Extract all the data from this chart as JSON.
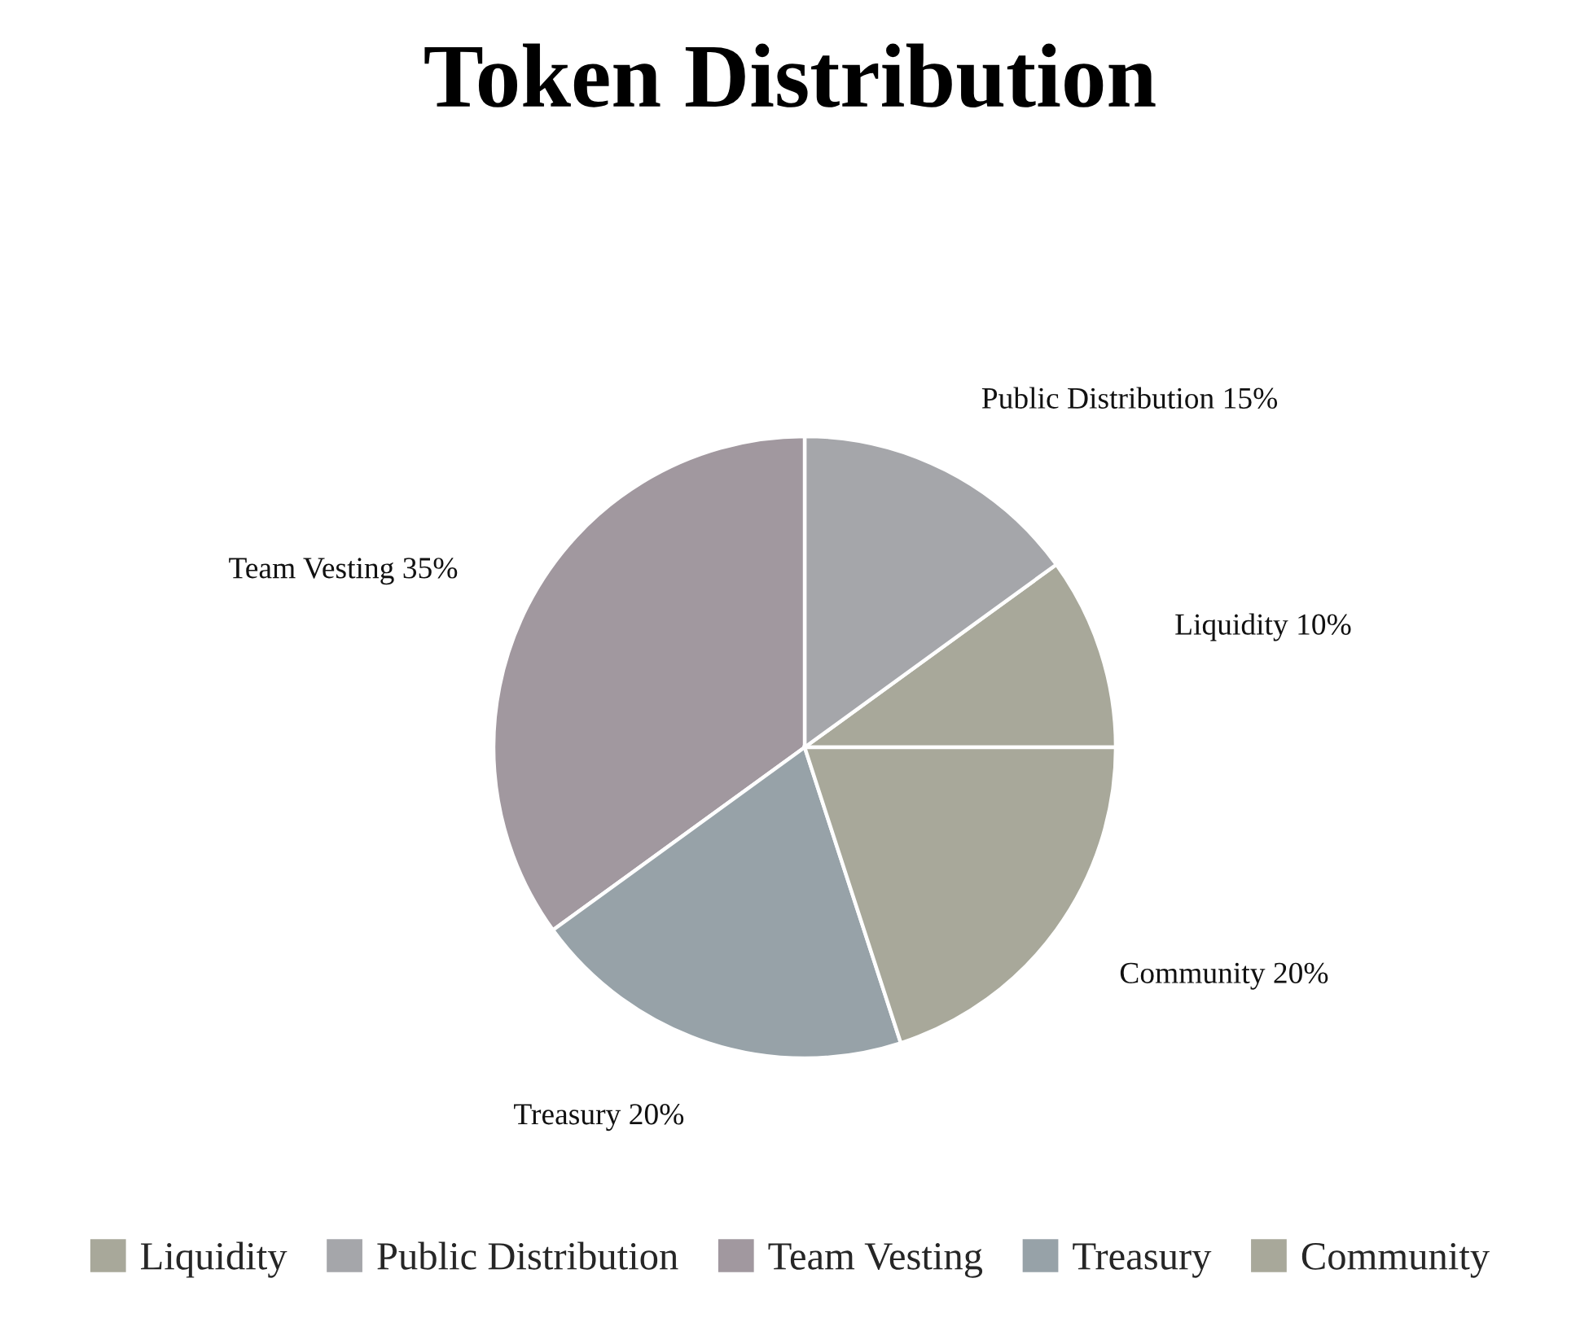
{
  "chart_data": {
    "type": "pie",
    "title": "Token Distribution",
    "categories": [
      "Liquidity",
      "Public Distribution",
      "Team Vesting",
      "Treasury",
      "Community"
    ],
    "values": [
      10,
      15,
      35,
      20,
      20
    ],
    "colors": [
      "#a8a89a",
      "#a5a6aa",
      "#a1989f",
      "#97a2a8",
      "#a8a89a"
    ],
    "value_labels": [
      "Liquidity 10%",
      "Public Distribution 15%",
      "Team Vesting 35%",
      "Treasury 20%",
      "Community 20%"
    ],
    "legend": "bottom"
  }
}
